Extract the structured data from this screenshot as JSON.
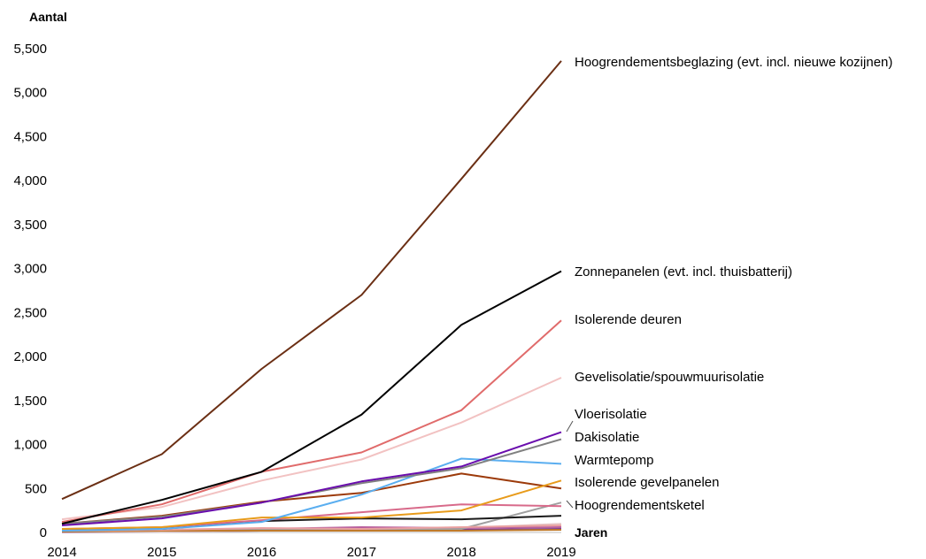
{
  "chart_data": {
    "type": "line",
    "ylabel": "Aantal",
    "xlabel": "Jaren",
    "x": [
      2014,
      2015,
      2016,
      2017,
      2018,
      2019
    ],
    "xlim": [
      2014,
      2019
    ],
    "ylim": [
      0,
      5500
    ],
    "ytick_labels": [
      "0",
      "500",
      "1,000",
      "1,500",
      "2,000",
      "2,500",
      "3,000",
      "3,500",
      "4,000",
      "4,500",
      "5,000",
      "5,500"
    ],
    "xtick_labels": [
      "2014",
      "2015",
      "2016",
      "2017",
      "2018",
      "2019"
    ],
    "grid": false,
    "legend": "labels at line ends (right)",
    "series": [
      {
        "name": "Hoogrendementsbeglazing (evt. incl. nieuwe kozijnen)",
        "color": "#6b2f14",
        "values": [
          380,
          890,
          1860,
          2700,
          4020,
          5360
        ]
      },
      {
        "name": "Zonnepanelen (evt. incl. thuisbatterij)",
        "color": "#000000",
        "values": [
          100,
          370,
          690,
          1340,
          2360,
          2970
        ]
      },
      {
        "name": "Isolerende deuren",
        "color": "#e06b6b",
        "values": [
          120,
          320,
          690,
          910,
          1390,
          2410
        ]
      },
      {
        "name": "Gevelisolatie/spouwmuurisolatie",
        "color": "#f2c2c2",
        "values": [
          150,
          290,
          590,
          830,
          1250,
          1760
        ]
      },
      {
        "name": "Vloerisolatie",
        "color": "#6a0dad",
        "values": [
          80,
          160,
          340,
          580,
          750,
          1140
        ]
      },
      {
        "name": "Dakisolatie",
        "color": "#808080",
        "values": [
          100,
          180,
          340,
          560,
          730,
          1060
        ]
      },
      {
        "name": "Warmtepomp",
        "color": "#5aaef0",
        "values": [
          20,
          40,
          120,
          430,
          840,
          780
        ]
      },
      {
        "name": "Isolerende gevelpanelen",
        "color": "#e89b1a",
        "values": [
          40,
          60,
          170,
          170,
          250,
          590
        ]
      },
      {
        "name": "Hoogrendementsketel",
        "color": "#9c3a0a",
        "values": [
          100,
          190,
          350,
          450,
          670,
          500
        ]
      },
      {
        "name": "",
        "color": "#d86a8a",
        "values": [
          40,
          60,
          140,
          230,
          320,
          300
        ]
      },
      {
        "name": "",
        "color": "#1a1a1a",
        "values": [
          30,
          40,
          130,
          160,
          150,
          190
        ]
      },
      {
        "name": "",
        "color": "#e9a0a0",
        "values": [
          20,
          30,
          50,
          40,
          60,
          80
        ]
      },
      {
        "name": "",
        "color": "#c07a2a",
        "values": [
          10,
          20,
          20,
          20,
          20,
          30
        ]
      },
      {
        "name": "",
        "color": "#a0a0a0",
        "values": [
          10,
          20,
          30,
          30,
          40,
          340
        ]
      },
      {
        "name": "",
        "color": "#b85f9e",
        "values": [
          20,
          20,
          40,
          60,
          50,
          60
        ]
      },
      {
        "name": "",
        "color": "#e7c8c8",
        "values": [
          10,
          10,
          20,
          30,
          50,
          100
        ]
      },
      {
        "name": "",
        "color": "#7a3f8f",
        "values": [
          5,
          10,
          20,
          30,
          30,
          40
        ]
      }
    ],
    "label_colors": {
      "text": "#000000",
      "leader": "#555555"
    }
  }
}
